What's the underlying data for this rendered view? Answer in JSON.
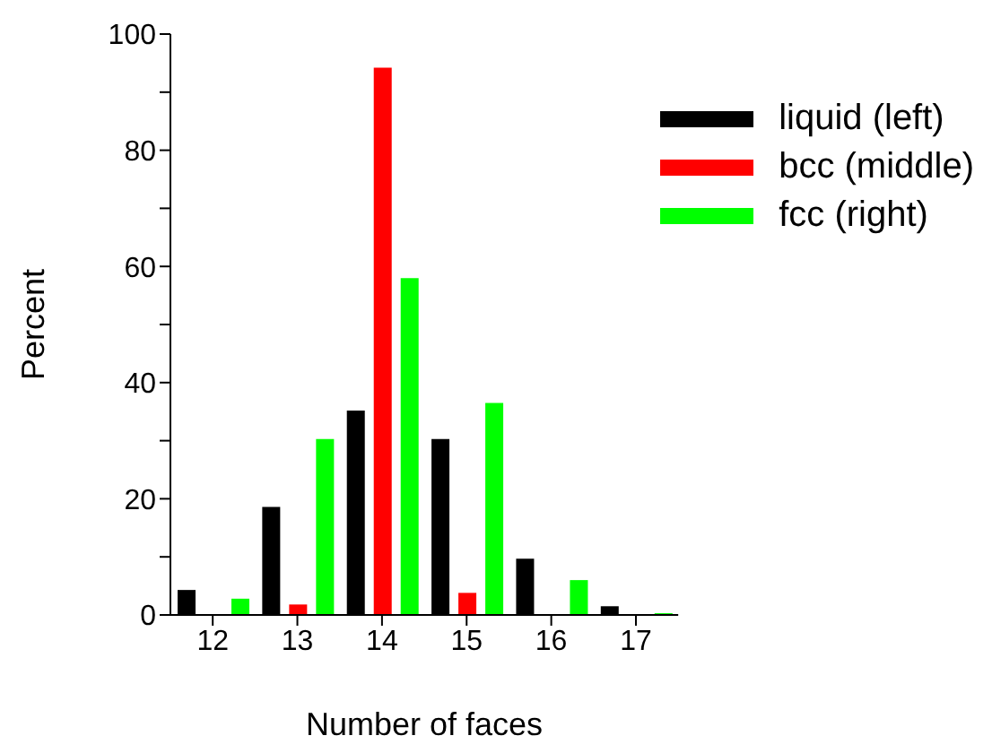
{
  "chart_data": {
    "type": "bar",
    "xlabel": "Number of faces",
    "ylabel": "Percent",
    "categories": [
      "12",
      "13",
      "14",
      "15",
      "16",
      "17"
    ],
    "series": [
      {
        "name": "liquid (left)",
        "color": "#000000",
        "values": [
          4.3,
          18.6,
          35.2,
          30.3,
          9.7,
          1.5
        ]
      },
      {
        "name": "bcc (middle)",
        "color": "#ff0000",
        "values": [
          0,
          1.8,
          94.2,
          3.8,
          0,
          0
        ]
      },
      {
        "name": "fcc (right)",
        "color": "#00ff00",
        "values": [
          2.8,
          30.3,
          58,
          36.5,
          6,
          0.3
        ]
      }
    ],
    "ylim": [
      0,
      100
    ],
    "yticks": [
      0,
      {
        "value": 10,
        "label": null
      },
      20,
      {
        "value": 30,
        "label": null
      },
      40,
      {
        "value": 50,
        "label": null
      },
      60,
      {
        "value": 70,
        "label": null
      },
      80,
      {
        "value": 90,
        "label": null
      },
      100
    ],
    "legend": "top right",
    "grid": false
  }
}
